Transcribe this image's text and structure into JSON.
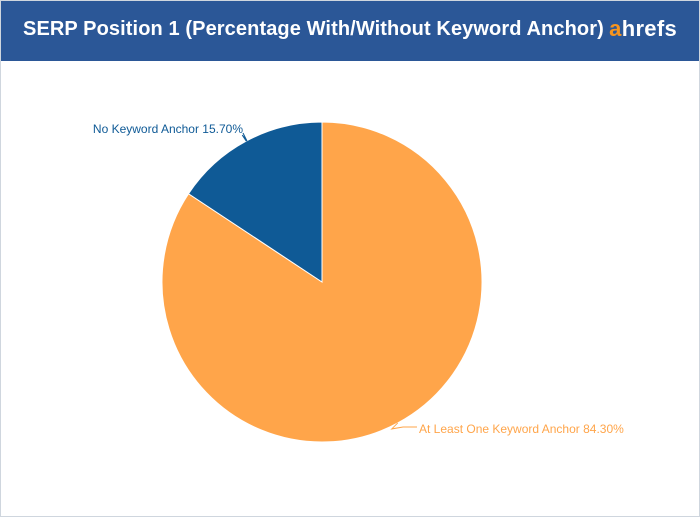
{
  "chart_data": {
    "type": "pie",
    "title": "SERP Position 1 (Percentage With/Without Keyword Anchor)",
    "slices": [
      {
        "label": "At Least One Keyword Anchor",
        "value": 84.3,
        "display": "At Least One Keyword Anchor 84.30%",
        "color": "#ffa54a"
      },
      {
        "label": "No Keyword Anchor",
        "value": 15.7,
        "display": "No Keyword Anchor 15.70%",
        "color": "#0f5a96"
      }
    ]
  },
  "brand": {
    "logo_first": "a",
    "logo_rest": "hrefs",
    "accent": "#f7941d",
    "header_bg": "#2b5797"
  }
}
